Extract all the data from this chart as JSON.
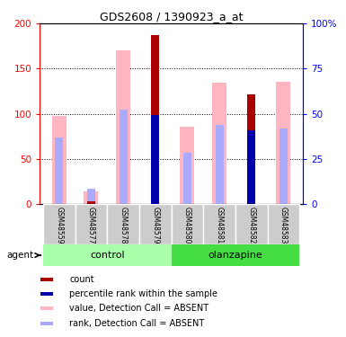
{
  "title": "GDS2608 / 1390923_a_at",
  "samples": [
    "GSM48559",
    "GSM48577",
    "GSM48578",
    "GSM48579",
    "GSM48580",
    "GSM48581",
    "GSM48582",
    "GSM48583"
  ],
  "value_absent": [
    98,
    14,
    170,
    null,
    86,
    134,
    null,
    135
  ],
  "rank_absent": [
    74,
    17,
    105,
    null,
    57,
    88,
    null,
    84
  ],
  "count": [
    null,
    3,
    null,
    187,
    null,
    null,
    121,
    null
  ],
  "percentile_rank": [
    null,
    null,
    null,
    99,
    null,
    null,
    82,
    null
  ],
  "ylim_left": [
    0,
    200
  ],
  "ylim_right": [
    0,
    100
  ],
  "yticks_left": [
    0,
    50,
    100,
    150,
    200
  ],
  "yticks_right": [
    0,
    25,
    50,
    75,
    100
  ],
  "color_count": "#AA0000",
  "color_percentile": "#0000AA",
  "color_value_absent": "#FFB6C1",
  "color_rank_absent": "#AAAAFF",
  "color_control_light": "#AAFFAA",
  "color_olanzapine_dark": "#44DD44",
  "color_sample_bg": "#CCCCCC"
}
